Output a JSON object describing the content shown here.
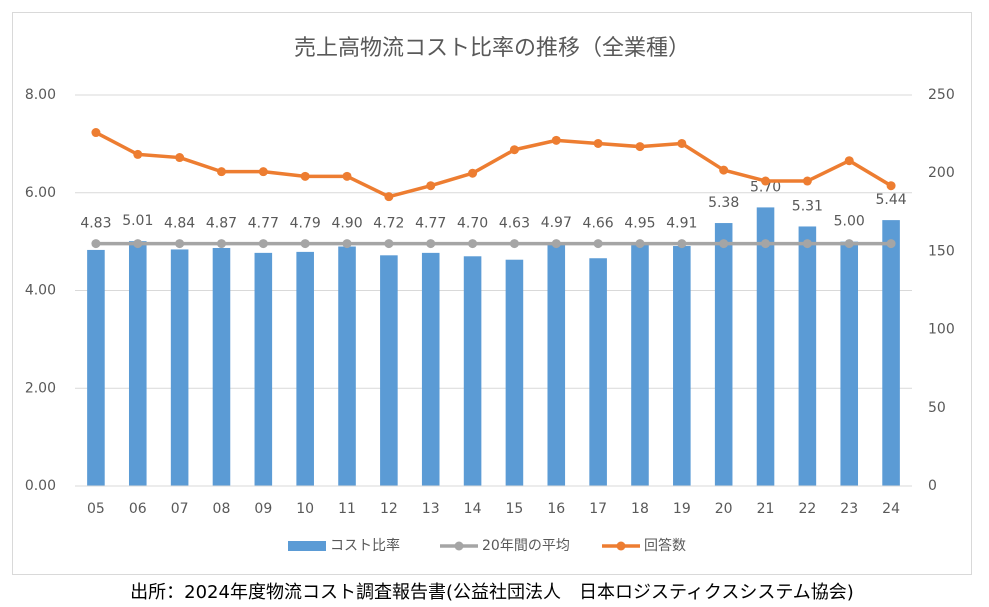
{
  "chart_data": {
    "type": "bar-line",
    "title": "売上高物流コスト比率の推移（全業種）",
    "source": "出所：2024年度物流コスト調査報告書(公益社団法人　日本ロジスティクスシステム協会)",
    "categories": [
      "05",
      "06",
      "07",
      "08",
      "09",
      "10",
      "11",
      "12",
      "13",
      "14",
      "15",
      "16",
      "17",
      "18",
      "19",
      "20",
      "21",
      "22",
      "23",
      "24"
    ],
    "series": [
      {
        "name": "コスト比率",
        "type": "bar",
        "color": "#5b9bd5",
        "axis": "y",
        "values": [
          4.83,
          5.01,
          4.84,
          4.87,
          4.77,
          4.79,
          4.9,
          4.72,
          4.77,
          4.7,
          4.63,
          4.97,
          4.66,
          4.95,
          4.91,
          5.38,
          5.7,
          5.31,
          5.0,
          5.44
        ],
        "value_labels": [
          "4.83",
          "5.01",
          "4.84",
          "4.87",
          "4.77",
          "4.79",
          "4.90",
          "4.72",
          "4.77",
          "4.70",
          "4.63",
          "4.97",
          "4.66",
          "4.95",
          "4.91",
          "5.38",
          "5.70",
          "5.31",
          "5.00",
          "5.44"
        ]
      },
      {
        "name": "20年間の平均",
        "type": "line",
        "color": "#a5a5a5",
        "axis": "y",
        "values": [
          4.96,
          4.96,
          4.96,
          4.96,
          4.96,
          4.96,
          4.96,
          4.96,
          4.96,
          4.96,
          4.96,
          4.96,
          4.96,
          4.96,
          4.96,
          4.96,
          4.96,
          4.96,
          4.96,
          4.96
        ]
      },
      {
        "name": "回答数",
        "type": "line",
        "color": "#ed7d31",
        "axis": "y2",
        "values": [
          226,
          212,
          210,
          201,
          201,
          198,
          198,
          185,
          192,
          200,
          215,
          221,
          219,
          217,
          219,
          202,
          195,
          195,
          208,
          192
        ]
      }
    ],
    "ylim": [
      0,
      8
    ],
    "yticks": [
      {
        "value": 0,
        "label": "0.00"
      },
      {
        "value": 2,
        "label": "2.00"
      },
      {
        "value": 4,
        "label": "4.00"
      },
      {
        "value": 6,
        "label": "6.00"
      },
      {
        "value": 8,
        "label": "8.00"
      }
    ],
    "y2lim": [
      0,
      250
    ],
    "y2ticks": [
      0,
      50,
      100,
      150,
      200,
      250
    ],
    "legend": "bottom"
  }
}
